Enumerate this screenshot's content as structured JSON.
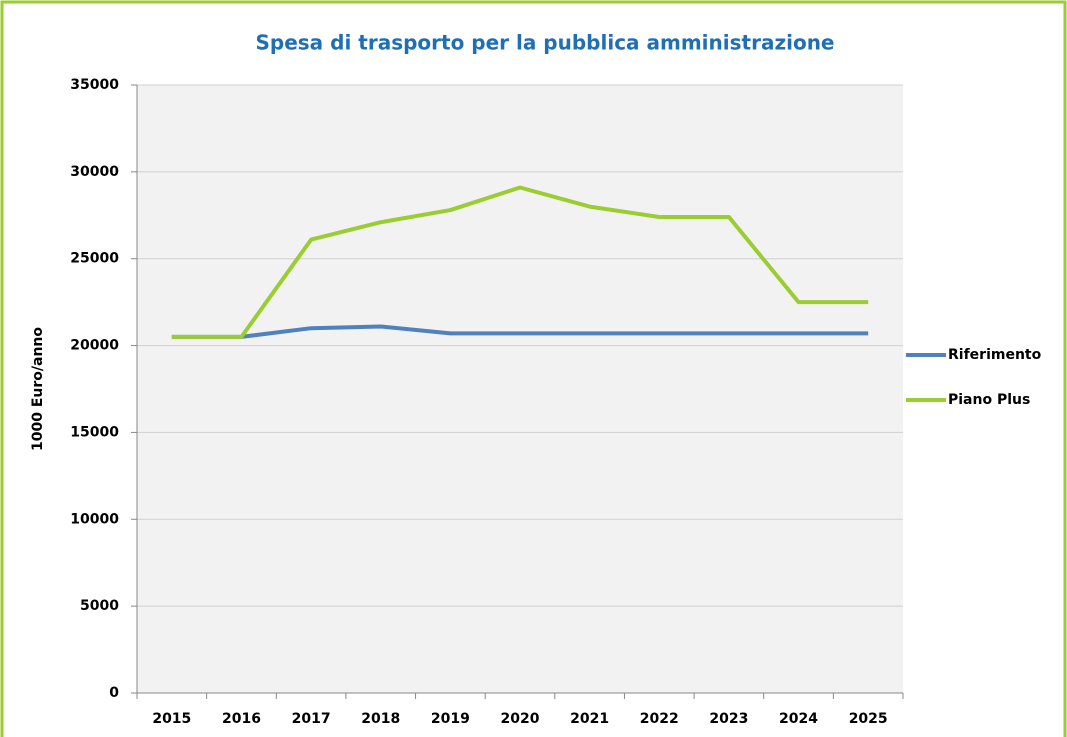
{
  "chart_data": {
    "type": "line",
    "title": "Spesa di trasporto per la pubblica amministrazione",
    "y_label": "1000 Euro/anno",
    "categories": [
      "2015",
      "2016",
      "2017",
      "2018",
      "2019",
      "2020",
      "2021",
      "2022",
      "2023",
      "2024",
      "2025"
    ],
    "series": [
      {
        "name": "Riferimento",
        "color": "#4f81bd",
        "values": [
          20500,
          20500,
          21000,
          21100,
          20700,
          20700,
          20700,
          20700,
          20700,
          20700,
          20700
        ]
      },
      {
        "name": "Piano Plus",
        "color": "#9acd32",
        "values": [
          20500,
          20500,
          26100,
          27100,
          27800,
          29100,
          28000,
          27400,
          27400,
          22500,
          22500
        ]
      }
    ],
    "ylim": [
      0,
      35000
    ],
    "yticks": [
      0,
      5000,
      10000,
      15000,
      20000,
      25000,
      30000,
      35000
    ],
    "grid": true,
    "legend": "right"
  }
}
